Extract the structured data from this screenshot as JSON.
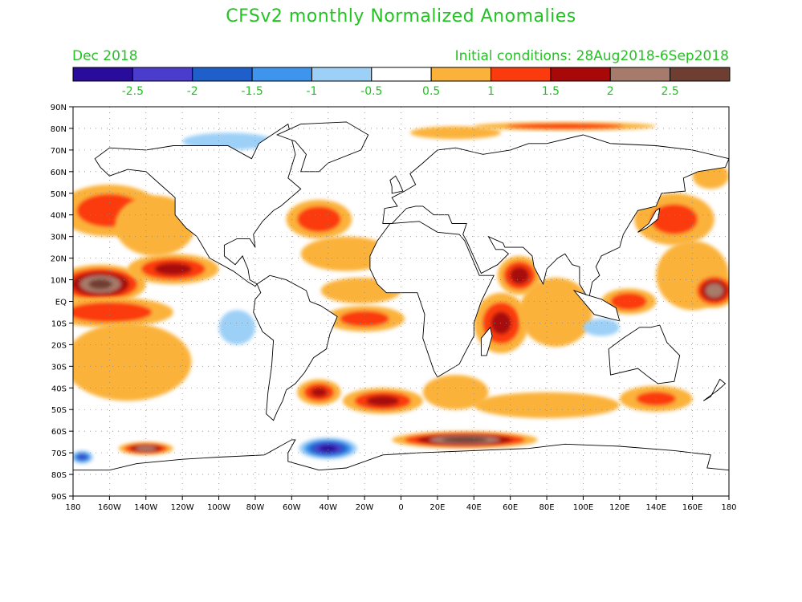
{
  "title": "CFSv2 monthly Normalized Anomalies",
  "subtitle_left": "Dec 2018",
  "subtitle_right": "Initial conditions: 28Aug2018-6Sep2018",
  "text_color": "#22c322",
  "colorbar": {
    "colors": [
      "#2a0c9c",
      "#4a3ccc",
      "#1f5fcc",
      "#3d95ee",
      "#9dd0f7",
      "#ffffff",
      "#fbb23a",
      "#fb3b0e",
      "#a80808",
      "#a77b6b",
      "#6f3e32"
    ],
    "tick_labels": [
      "-2.5",
      "-2",
      "-1.5",
      "-1",
      "-0.5",
      "0.5",
      "1",
      "1.5",
      "2",
      "2.5"
    ]
  },
  "map": {
    "lat_labels": [
      "90N",
      "80N",
      "70N",
      "60N",
      "50N",
      "40N",
      "30N",
      "20N",
      "10N",
      "EQ",
      "10S",
      "20S",
      "30S",
      "40S",
      "50S",
      "60S",
      "70S",
      "80S",
      "90S"
    ],
    "lon_labels": [
      "180",
      "160W",
      "140W",
      "120W",
      "100W",
      "80W",
      "60W",
      "40W",
      "20W",
      "0",
      "20E",
      "40E",
      "60E",
      "80E",
      "100E",
      "120E",
      "140E",
      "160E",
      "180"
    ],
    "anomaly_regions": [
      {
        "name": "north-pacific",
        "lon": -160,
        "lat": 42,
        "rlon": 28,
        "rlat": 12,
        "level": 1.3
      },
      {
        "name": "northeast-pacific",
        "lon": -135,
        "lat": 35,
        "rlon": 22,
        "rlat": 14,
        "level": 0.9
      },
      {
        "name": "tropical-central-pacific",
        "lon": -165,
        "lat": 8,
        "rlon": 25,
        "rlat": 9,
        "level": 2.6
      },
      {
        "name": "tropical-east-pacific",
        "lon": -125,
        "lat": 15,
        "rlon": 25,
        "rlat": 7,
        "level": 1.6
      },
      {
        "name": "equatorial-pacific",
        "lon": -160,
        "lat": -5,
        "rlon": 35,
        "rlat": 7,
        "level": 1.4
      },
      {
        "name": "south-pacific",
        "lon": -150,
        "lat": -28,
        "rlon": 35,
        "rlat": 18,
        "level": 0.8
      },
      {
        "name": "north-atlantic",
        "lon": -45,
        "lat": 38,
        "rlon": 18,
        "rlat": 9,
        "level": 1.4
      },
      {
        "name": "subtropical-atlantic",
        "lon": -30,
        "lat": 22,
        "rlon": 25,
        "rlat": 8,
        "level": 0.8
      },
      {
        "name": "tropical-atlantic",
        "lon": -22,
        "lat": 5,
        "rlon": 22,
        "rlat": 6,
        "level": 0.9
      },
      {
        "name": "south-atlantic",
        "lon": -20,
        "lat": -8,
        "rlon": 22,
        "rlat": 6,
        "level": 1.2
      },
      {
        "name": "south-atlantic-40s",
        "lon": -45,
        "lat": -42,
        "rlon": 12,
        "rlat": 6,
        "level": 1.5
      },
      {
        "name": "south-atlantic-45s",
        "lon": -10,
        "lat": -46,
        "rlon": 22,
        "rlat": 6,
        "level": 1.6
      },
      {
        "name": "south-of-africa",
        "lon": 30,
        "lat": -42,
        "rlon": 18,
        "rlat": 8,
        "level": 0.8
      },
      {
        "name": "arabian-sea",
        "lon": 65,
        "lat": 12,
        "rlon": 12,
        "rlat": 9,
        "level": 1.7
      },
      {
        "name": "west-indian-ocean",
        "lon": 55,
        "lat": -10,
        "rlon": 15,
        "rlat": 14,
        "level": 1.5
      },
      {
        "name": "east-indian-ocean",
        "lon": 85,
        "lat": -5,
        "rlon": 20,
        "rlat": 16,
        "level": 0.8
      },
      {
        "name": "maritime-continent",
        "lon": 125,
        "lat": 0,
        "rlon": 15,
        "rlat": 6,
        "level": 1.4
      },
      {
        "name": "western-pacific",
        "lon": 160,
        "lat": 12,
        "rlon": 20,
        "rlat": 16,
        "level": 0.8
      },
      {
        "name": "kuroshio",
        "lon": 150,
        "lat": 38,
        "rlon": 22,
        "rlat": 12,
        "level": 1.1
      },
      {
        "name": "date-line-tropics",
        "lon": 172,
        "lat": 5,
        "rlon": 12,
        "rlat": 8,
        "level": 2.4
      },
      {
        "name": "southern-ocean-indian",
        "lon": 80,
        "lat": -48,
        "rlon": 40,
        "rlat": 6,
        "level": 0.9
      },
      {
        "name": "southern-ocean-east",
        "lon": 140,
        "lat": -45,
        "rlon": 20,
        "rlat": 6,
        "level": 1.0
      },
      {
        "name": "weddell-indian-sector",
        "lon": 35,
        "lat": -64,
        "rlon": 40,
        "rlat": 4,
        "level": 2.8
      },
      {
        "name": "ross-amundsen",
        "lon": -140,
        "lat": -68,
        "rlon": 15,
        "rlat": 3,
        "level": 2.3
      },
      {
        "name": "weddell-sea",
        "lon": -40,
        "lat": -68,
        "rlon": 16,
        "rlat": 5,
        "level": -2.8
      },
      {
        "name": "amundsen-west",
        "lon": -175,
        "lat": -72,
        "rlon": 6,
        "rlat": 3,
        "level": -2.0
      },
      {
        "name": "arctic-north-america",
        "lon": -95,
        "lat": 74,
        "rlon": 25,
        "rlat": 4,
        "level": -0.8
      },
      {
        "name": "siberian-arctic",
        "lon": 90,
        "lat": 81,
        "rlon": 50,
        "rlat": 2,
        "level": 1.3
      },
      {
        "name": "bering-region",
        "lon": 170,
        "lat": 58,
        "rlon": 10,
        "rlat": 6,
        "level": 0.8
      },
      {
        "name": "barents-arctic",
        "lon": 30,
        "lat": 78,
        "rlon": 25,
        "rlat": 3,
        "level": 0.8
      },
      {
        "name": "east-pacific-south",
        "lon": -90,
        "lat": -12,
        "rlon": 10,
        "rlat": 8,
        "level": -0.8
      },
      {
        "name": "indian-south",
        "lon": 110,
        "lat": -12,
        "rlon": 10,
        "rlat": 4,
        "level": -0.8
      }
    ]
  }
}
